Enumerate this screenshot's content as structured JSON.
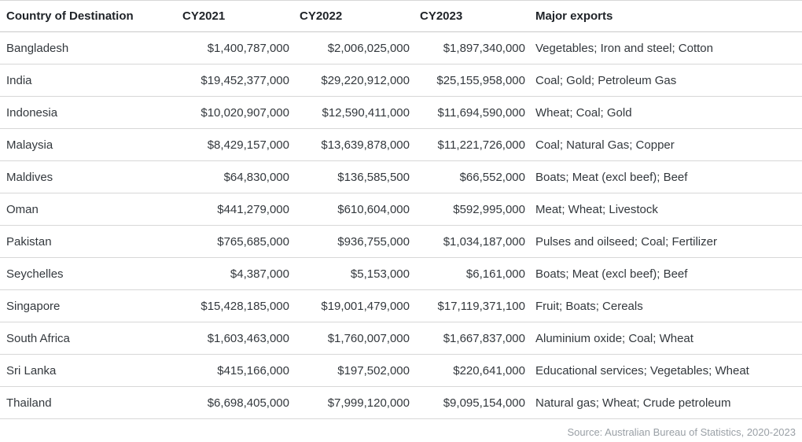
{
  "chart_data": {
    "type": "table",
    "columns": [
      "Country of Destination",
      "CY2021",
      "CY2022",
      "CY2023",
      "Major exports"
    ],
    "rows": [
      [
        "Bangladesh",
        "$1,400,787,000",
        "$2,006,025,000",
        "$1,897,340,000",
        "Vegetables; Iron and steel; Cotton"
      ],
      [
        "India",
        "$19,452,377,000",
        "$29,220,912,000",
        "$25,155,958,000",
        "Coal; Gold; Petroleum Gas"
      ],
      [
        "Indonesia",
        "$10,020,907,000",
        "$12,590,411,000",
        "$11,694,590,000",
        "Wheat; Coal; Gold"
      ],
      [
        "Malaysia",
        "$8,429,157,000",
        "$13,639,878,000",
        "$11,221,726,000",
        "Coal; Natural Gas; Copper"
      ],
      [
        "Maldives",
        "$64,830,000",
        "$136,585,500",
        "$66,552,000",
        "Boats; Meat (excl beef); Beef"
      ],
      [
        "Oman",
        "$441,279,000",
        "$610,604,000",
        "$592,995,000",
        "Meat; Wheat; Livestock"
      ],
      [
        "Pakistan",
        "$765,685,000",
        "$936,755,000",
        "$1,034,187,000",
        "Pulses and oilseed; Coal; Fertilizer"
      ],
      [
        "Seychelles",
        "$4,387,000",
        "$5,153,000",
        "$6,161,000",
        "Boats; Meat (excl beef); Beef"
      ],
      [
        "Singapore",
        "$15,428,185,000",
        "$19,001,479,000",
        "$17,119,371,100",
        "Fruit; Boats; Cereals"
      ],
      [
        "South Africa",
        "$1,603,463,000",
        "$1,760,007,000",
        "$1,667,837,000",
        "Aluminium oxide; Coal; Wheat"
      ],
      [
        "Sri Lanka",
        "$415,166,000",
        "$197,502,000",
        "$220,641,000",
        "Educational services; Vegetables; Wheat"
      ],
      [
        "Thailand",
        "$6,698,405,000",
        "$7,999,120,000",
        "$9,095,154,000",
        "Natural gas; Wheat; Crude petroleum"
      ]
    ],
    "source_note": "Source: Australian Bureau of Statistics, 2020-2023",
    "layout": {
      "numeric_columns_align": "right",
      "grid": "horizontal-only",
      "background": "#ffffff",
      "separator_color": "#d7d7d7"
    },
    "colors": {
      "header_text": "#1f2328",
      "body_text": "#33383d",
      "source_text": "#9aa0a6"
    }
  }
}
